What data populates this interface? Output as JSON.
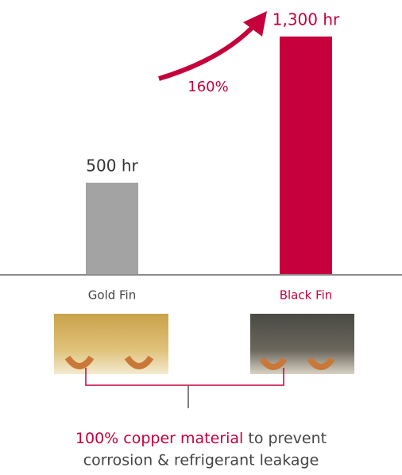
{
  "chart_data": {
    "type": "bar",
    "categories": [
      "Gold Fin",
      "Black Fin"
    ],
    "values": [
      500,
      1300
    ],
    "value_labels": [
      "500 hr",
      "1,300 hr"
    ],
    "colors": [
      "#a3a3a3",
      "#c5003c"
    ],
    "label_colors": [
      "#444444",
      "#c5003c"
    ],
    "annotation": "160%",
    "caption_highlight": "100% copper material",
    "caption_lines": [
      "to prevent",
      "corrosion & refrigerant leakage"
    ]
  }
}
